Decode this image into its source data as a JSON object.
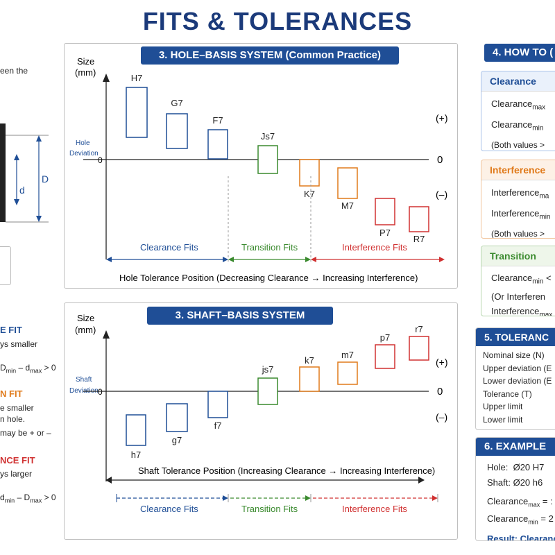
{
  "title": "FITS & TOLERANCES",
  "left": {
    "frag_intro": "een the",
    "d_outer": "D",
    "d_inner": "d",
    "clearance_head": "E FIT",
    "clearance_line1": "ys smaller",
    "clearance_formula_a": "D",
    "clearance_formula_a_sub": "min",
    "clearance_formula_b": " – d",
    "clearance_formula_b_sub": "max",
    "clearance_formula_c": " > 0",
    "transition_head": "N FIT",
    "transition_line1": "e smaller",
    "transition_line2": "n hole.",
    "transition_line3": "may be + or –",
    "interference_head": "NCE FIT",
    "interference_line1": "ys larger",
    "interference_formula_a": "d",
    "interference_formula_a_sub": "min",
    "interference_formula_b": " – D",
    "interference_formula_b_sub": "max",
    "interference_formula_c": " > 0"
  },
  "hole_panel": {
    "banner": "3. HOLE–BASIS SYSTEM (Common Practice)",
    "axis_label": "Size",
    "axis_unit": "(mm)",
    "deviation_label_1": "Hole",
    "deviation_label_2": "Deviation",
    "zero_left": "0",
    "plus": "(+)",
    "zero_right": "0",
    "minus": "(–)",
    "boxes": [
      {
        "label": "H7",
        "color": "#1f4e96"
      },
      {
        "label": "G7",
        "color": "#1f4e96"
      },
      {
        "label": "F7",
        "color": "#1f4e96"
      },
      {
        "label": "Js7",
        "color": "#3a8a2e"
      },
      {
        "label": "K7",
        "color": "#e07a1a"
      },
      {
        "label": "M7",
        "color": "#e07a1a"
      },
      {
        "label": "P7",
        "color": "#d03030"
      },
      {
        "label": "R7",
        "color": "#d03030"
      }
    ],
    "zones": [
      "Clearance Fits",
      "Transition Fits",
      "Interference Fits"
    ],
    "caption": "Hole Tolerance Position (Decreasing Clearance → Increasing Interference)"
  },
  "shaft_panel": {
    "banner": "3. SHAFT–BASIS SYSTEM",
    "axis_label": "Size",
    "axis_unit": "(mm)",
    "deviation_label_1": "Shaft",
    "deviation_label_2": "Deviation",
    "zero_left": "0",
    "plus": "(+)",
    "zero_right": "0",
    "minus": "(–)",
    "boxes": [
      {
        "label": "h7",
        "color": "#1f4e96"
      },
      {
        "label": "g7",
        "color": "#1f4e96"
      },
      {
        "label": "f7",
        "color": "#1f4e96"
      },
      {
        "label": "js7",
        "color": "#3a8a2e"
      },
      {
        "label": "k7",
        "color": "#e07a1a"
      },
      {
        "label": "m7",
        "color": "#e07a1a"
      },
      {
        "label": "p7",
        "color": "#d03030"
      },
      {
        "label": "r7",
        "color": "#d03030"
      }
    ],
    "caption": "Shaft Tolerance Position (Increasing Clearance → Increasing Interference)",
    "zones": [
      "Clearance Fits",
      "Transition Fits",
      "Interference Fits"
    ]
  },
  "right": {
    "howto_banner": "4. HOW TO (",
    "clearance": {
      "head": "Clearance",
      "l1": "Clearance",
      "l1_sub": "max",
      "l2": "Clearance",
      "l2_sub": "min",
      "l3": "(Both values >"
    },
    "interference": {
      "head": "Interference",
      "l1": "Interference",
      "l1_sub": "ma",
      "l2": "Interference",
      "l2_sub": "min",
      "l3": "(Both values >"
    },
    "transition": {
      "head": "Transition",
      "l1": "Clearance",
      "l1_sub": "min",
      "l1_tail": " <",
      "l2": "(Or Interferen",
      "l3": "Interference",
      "l3_sub": "max"
    },
    "tolerance_banner": "5. TOLERANC",
    "tolerance_items": [
      "Nominal size (N)",
      "Upper deviation (E",
      "Lower deviation (E",
      "Tolerance (T)",
      "Upper limit",
      "Lower limit"
    ],
    "example_banner": "6. EXAMPLE",
    "example": {
      "hole_label": "Hole:",
      "hole_value": "Ø20 H7",
      "shaft_label": "Shaft:",
      "shaft_value": "Ø20 h6",
      "c1": "Clearance",
      "c1_sub": "max",
      "c1_tail": " = :",
      "c2": "Clearance",
      "c2_sub": "min",
      "c2_tail": " = 2",
      "result": "Result: Clearanc"
    }
  }
}
